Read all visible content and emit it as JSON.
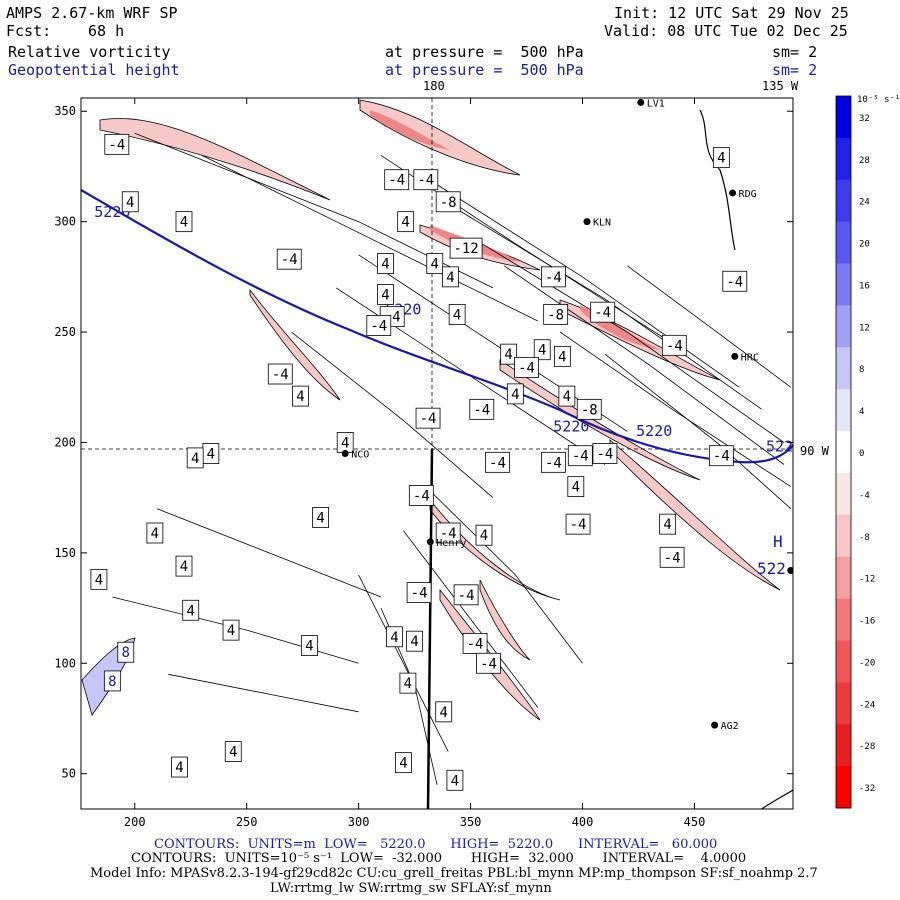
{
  "header": {
    "model": "AMPS 2.67-km WRF SP",
    "fcst_label": "Fcst:",
    "fcst_value": "68 h",
    "init": "Init: 12 UTC Sat 29 Nov 25",
    "valid": "Valid: 08 UTC Tue 02 Dec 25",
    "field1": "Relative vorticity",
    "field1_level": "at pressure =  500 hPa",
    "field1_sm": "sm= 2",
    "field2": "Geopotential height",
    "field2_level": "at pressure =  500 hPa",
    "field2_sm": "sm= 2"
  },
  "map": {
    "lon_top_180": "180",
    "lon_top_135w": "135 W",
    "lon_right_90w": "90 W",
    "x_ticks": [
      "200",
      "250",
      "300",
      "350",
      "400",
      "450"
    ],
    "y_ticks": [
      "350",
      "300",
      "250",
      "200",
      "150",
      "100",
      "50"
    ],
    "x_tick_values": [
      200,
      250,
      300,
      350,
      400,
      450
    ],
    "y_tick_values": [
      350,
      300,
      250,
      200,
      150,
      100,
      50
    ],
    "x_range": [
      176,
      494
    ],
    "y_range": [
      34,
      356
    ],
    "stations": [
      {
        "name": "LV1",
        "x": 426,
        "y": 354
      },
      {
        "name": "RDG",
        "x": 467,
        "y": 313
      },
      {
        "name": "KLN",
        "x": 402,
        "y": 300
      },
      {
        "name": "HRC",
        "x": 468,
        "y": 239
      },
      {
        "name": "NCO",
        "x": 294,
        "y": 195
      },
      {
        "name": "Henry",
        "x": 332,
        "y": 155
      },
      {
        "name": "AG2",
        "x": 459,
        "y": 72
      },
      {
        "name": "",
        "x": 493,
        "y": 142
      }
    ],
    "height_contour_label": "5220",
    "height_labels_x": [
      190,
      320,
      395,
      432,
      490
    ],
    "height_labels_y": [
      302,
      258,
      205,
      203,
      196
    ],
    "high_marker": "H",
    "high_label": "522",
    "vort_labels": [
      {
        "t": "-4",
        "x": 192,
        "y": 335
      },
      {
        "t": "4",
        "x": 198,
        "y": 309
      },
      {
        "t": "4",
        "x": 222,
        "y": 300
      },
      {
        "t": "-4",
        "x": 269,
        "y": 283
      },
      {
        "t": "-4",
        "x": 317,
        "y": 319
      },
      {
        "t": "-4",
        "x": 330,
        "y": 319
      },
      {
        "t": "-8",
        "x": 340,
        "y": 309
      },
      {
        "t": "4",
        "x": 321,
        "y": 300
      },
      {
        "t": "-12",
        "x": 348,
        "y": 288
      },
      {
        "t": "4",
        "x": 334,
        "y": 281
      },
      {
        "t": "4",
        "x": 341,
        "y": 275
      },
      {
        "t": "4",
        "x": 312,
        "y": 281
      },
      {
        "t": "4",
        "x": 312,
        "y": 267
      },
      {
        "t": "-4",
        "x": 315,
        "y": 257
      },
      {
        "t": "4",
        "x": 344,
        "y": 258
      },
      {
        "t": "4",
        "x": 382,
        "y": 242
      },
      {
        "t": "4",
        "x": 367,
        "y": 240
      },
      {
        "t": "4",
        "x": 391,
        "y": 239
      },
      {
        "t": "-4",
        "x": 387,
        "y": 275
      },
      {
        "t": "-8",
        "x": 388,
        "y": 258
      },
      {
        "t": "-4",
        "x": 409,
        "y": 259
      },
      {
        "t": "-4",
        "x": 375,
        "y": 234
      },
      {
        "t": "4",
        "x": 370,
        "y": 222
      },
      {
        "t": "-4",
        "x": 355,
        "y": 215
      },
      {
        "t": "-8",
        "x": 403,
        "y": 215
      },
      {
        "t": "4",
        "x": 393,
        "y": 221
      },
      {
        "t": "-4",
        "x": 362,
        "y": 191
      },
      {
        "t": "-4",
        "x": 387,
        "y": 191
      },
      {
        "t": "-4",
        "x": 399,
        "y": 194
      },
      {
        "t": "-4",
        "x": 410,
        "y": 195
      },
      {
        "t": "4",
        "x": 397,
        "y": 180
      },
      {
        "t": "-4",
        "x": 398,
        "y": 163
      },
      {
        "t": "-4",
        "x": 309,
        "y": 253
      },
      {
        "t": "-4",
        "x": 265,
        "y": 231
      },
      {
        "t": "-4",
        "x": 331,
        "y": 211
      },
      {
        "t": "4",
        "x": 274,
        "y": 221
      },
      {
        "t": "4",
        "x": 294,
        "y": 200
      },
      {
        "t": "4",
        "x": 234,
        "y": 195
      },
      {
        "t": "4",
        "x": 227,
        "y": 193
      },
      {
        "t": "-4",
        "x": 328,
        "y": 176
      },
      {
        "t": "-4",
        "x": 327,
        "y": 132
      },
      {
        "t": "4",
        "x": 283,
        "y": 166
      },
      {
        "t": "4",
        "x": 209,
        "y": 159
      },
      {
        "t": "4",
        "x": 222,
        "y": 144
      },
      {
        "t": "4",
        "x": 184,
        "y": 138
      },
      {
        "t": "-4",
        "x": 340,
        "y": 159
      },
      {
        "t": "4",
        "x": 356,
        "y": 158
      },
      {
        "t": "4",
        "x": 225,
        "y": 124
      },
      {
        "t": "4",
        "x": 243,
        "y": 115
      },
      {
        "t": "4",
        "x": 278,
        "y": 108
      },
      {
        "t": "-4",
        "x": 348,
        "y": 131
      },
      {
        "t": "-4",
        "x": 352,
        "y": 109
      },
      {
        "t": "-4",
        "x": 358,
        "y": 100
      },
      {
        "t": "4",
        "x": 316,
        "y": 112
      },
      {
        "t": "4",
        "x": 325,
        "y": 110
      },
      {
        "t": "4",
        "x": 322,
        "y": 91
      },
      {
        "t": "4",
        "x": 338,
        "y": 78
      },
      {
        "t": "4",
        "x": 320,
        "y": 55
      },
      {
        "t": "4",
        "x": 343,
        "y": 47
      },
      {
        "t": "4",
        "x": 244,
        "y": 60
      },
      {
        "t": "4",
        "x": 220,
        "y": 53
      },
      {
        "t": "8",
        "x": 196,
        "y": 105
      },
      {
        "t": "8",
        "x": 190,
        "y": 92
      },
      {
        "t": "-4",
        "x": 468,
        "y": 273
      },
      {
        "t": "-4",
        "x": 462,
        "y": 194
      },
      {
        "t": "-4",
        "x": 440,
        "y": 148
      },
      {
        "t": "4",
        "x": 462,
        "y": 329
      },
      {
        "t": "4",
        "x": 438,
        "y": 163
      },
      {
        "t": "-4",
        "x": 441,
        "y": 244
      }
    ]
  },
  "colorbar": {
    "unit_label": "10⁻⁵ s⁻¹",
    "labels": [
      "32",
      "28",
      "24",
      "20",
      "16",
      "12",
      "8",
      "4",
      "0",
      "-4",
      "-8",
      "-12",
      "-16",
      "-20",
      "-24",
      "-28",
      "-32"
    ],
    "colors": [
      "#0000e0",
      "#2020e6",
      "#3c3ceb",
      "#5858ef",
      "#7a7af2",
      "#a0a0f5",
      "#c6c6f8",
      "#e6e6fb",
      "#ffffff",
      "#fbe6e6",
      "#f8c6c6",
      "#f5a0a0",
      "#f27a7a",
      "#ef5858",
      "#eb3c3c",
      "#e62020",
      "#ff0000"
    ]
  },
  "footer": {
    "line1": "CONTOURS:  UNITS=m  LOW=   5220.0      HIGH=  5220.0      INTERVAL=   60.000",
    "line2": "CONTOURS:  UNITS=10⁻⁵ s⁻¹  LOW=  -32.000       HIGH=  32.000       INTERVAL=    4.0000",
    "line3": "Model Info: MPASv8.2.3-194-gf29cd82c CU:cu_grell_freitas PBL:bl_mynn MP:mp_thompson SF:sf_noahmp 2.7",
    "line4": "LW:rrtmg_lw SW:rrtmg_sw SFLAY:sf_mynn"
  }
}
